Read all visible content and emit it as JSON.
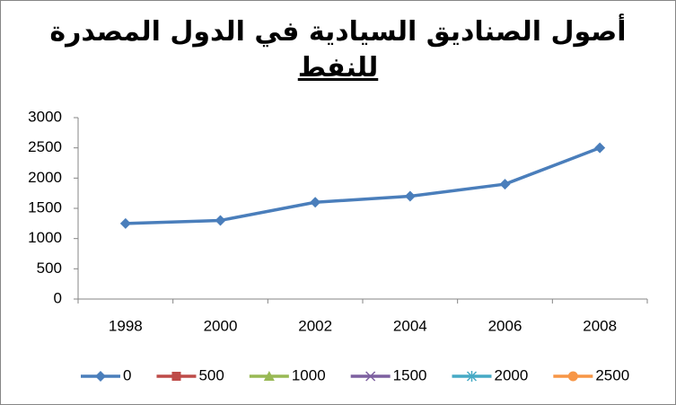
{
  "chart_data": {
    "type": "line",
    "title": [
      "أصول الصناديق السيادية في الدول المصدرة",
      "للنفط"
    ],
    "categories": [
      "1998",
      "2000",
      "2002",
      "2004",
      "2006",
      "2008"
    ],
    "series": [
      {
        "name": "0",
        "color": "#4a7ebb",
        "marker": "diamond",
        "values": [
          1250,
          1300,
          1600,
          1700,
          1900,
          2500
        ]
      },
      {
        "name": "500",
        "color": "#be4b48",
        "marker": "square",
        "values": [
          null,
          null,
          null,
          null,
          null,
          null
        ]
      },
      {
        "name": "1000",
        "color": "#98b954",
        "marker": "triangle",
        "values": [
          null,
          null,
          null,
          null,
          null,
          null
        ]
      },
      {
        "name": "1500",
        "color": "#7d60a0",
        "marker": "x",
        "values": [
          null,
          null,
          null,
          null,
          null,
          null
        ]
      },
      {
        "name": "2000",
        "color": "#46aac5",
        "marker": "star",
        "values": [
          null,
          null,
          null,
          null,
          null,
          null
        ]
      },
      {
        "name": "2500",
        "color": "#f79646",
        "marker": "circle",
        "values": [
          null,
          null,
          null,
          null,
          null,
          null
        ]
      }
    ],
    "ylim": [
      0,
      3000
    ],
    "yticks": [
      0,
      500,
      1000,
      1500,
      2000,
      2500,
      3000
    ],
    "grid": false,
    "legend": "bottom"
  }
}
